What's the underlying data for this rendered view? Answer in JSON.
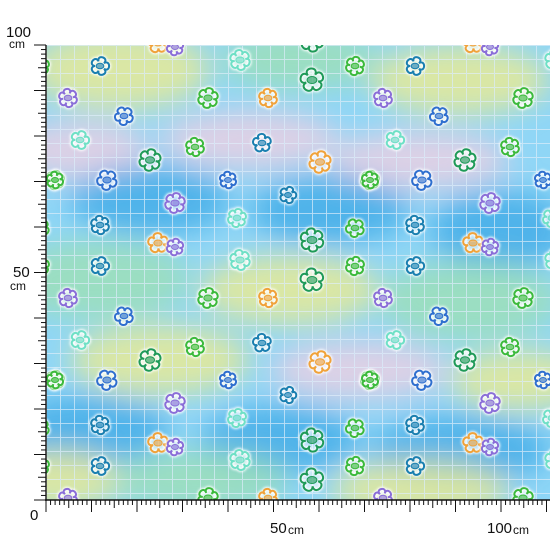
{
  "ruler": {
    "vertical": {
      "top_value": "100",
      "top_unit": "cm",
      "mid_value": "50",
      "mid_unit": "cm",
      "origin": "0"
    },
    "horizontal": {
      "mid_value": "50",
      "mid_unit": "cm",
      "end_value": "100",
      "end_unit": "cm"
    },
    "tick_color": "#111111"
  },
  "pattern": {
    "description_free_colors": {
      "sky_blue": "#7fd0f5",
      "deep_blue": "#3aa7e6",
      "yellow": "#f3ec8a",
      "green": "#9fe0b0",
      "pink": "#f6cfe0",
      "grid_line": "#ffffff"
    },
    "flower_colors": [
      "#1a7fb0",
      "#f0a23a",
      "#8a6ed8",
      "#3cba3c",
      "#1f9a58",
      "#6fe0c6",
      "#2f6fcf"
    ],
    "icons": [
      "flower-icon"
    ]
  }
}
